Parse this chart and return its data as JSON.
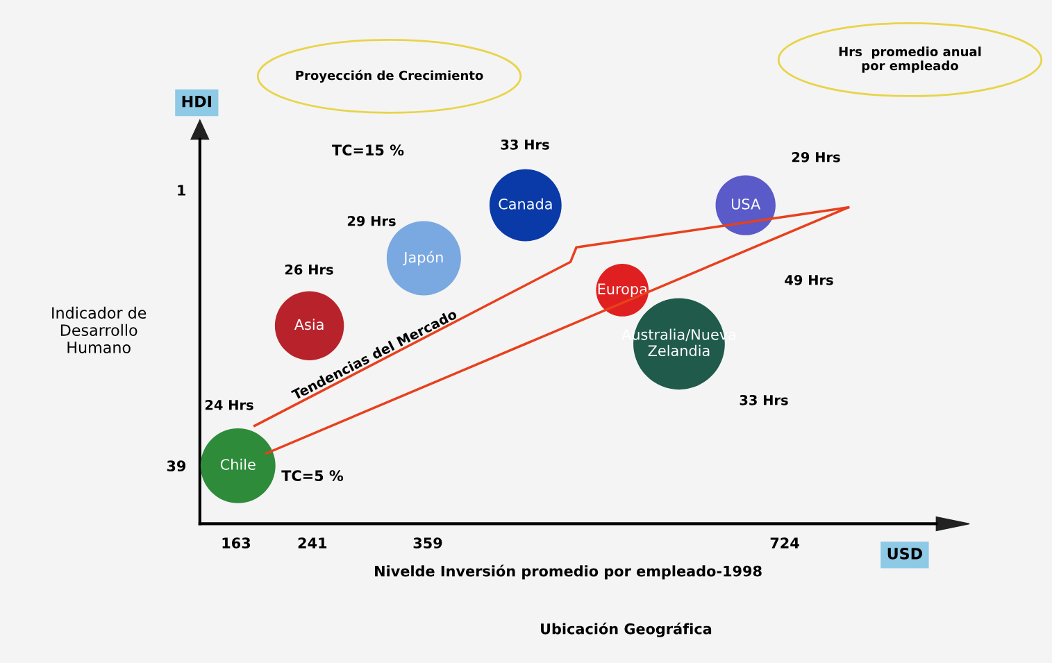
{
  "chart_data": {
    "type": "bubble",
    "xlabel": "Nivelde Inversión promedio por empleado-1998",
    "ylabel": "Indicador de\nDesarrollo\nHumano",
    "xlim": [
      126,
      879
    ],
    "xticks": [
      163,
      241,
      359,
      724
    ],
    "ylim": [
      47,
      -6
    ],
    "yticks": [
      39,
      1
    ],
    "grid": false,
    "legend": false,
    "series": [
      {
        "name": "Chile",
        "color": "#2e8b3a",
        "x": [
          165
        ],
        "values": [
          39
        ],
        "sizes": [
          0.67
        ]
      },
      {
        "name": "Asia",
        "color": "#b8232b",
        "x": [
          238
        ],
        "values": [
          19.7
        ],
        "sizes": [
          0.57
        ]
      },
      {
        "name": "Japón",
        "color": "#7aa8e0",
        "x": [
          355
        ],
        "values": [
          10.4
        ],
        "sizes": [
          0.66
        ]
      },
      {
        "name": "Canada",
        "color": "#0a3aa8",
        "x": [
          459
        ],
        "values": [
          3.1
        ],
        "sizes": [
          0.62
        ]
      },
      {
        "name": "USA",
        "color": "#5a5ac8",
        "x": [
          684
        ],
        "values": [
          3.1
        ],
        "sizes": [
          0.43
        ]
      },
      {
        "name": "Europa",
        "color": "#e02020",
        "x": [
          558
        ],
        "values": [
          14.8
        ],
        "sizes": [
          0.33
        ]
      },
      {
        "name": "Australia/Nueva\nZelandia",
        "color": "#1f5a4a",
        "x": [
          616
        ],
        "values": [
          22.2
        ],
        "sizes": [
          1
        ]
      },
      {
        "type": "line",
        "color": "#e8401c",
        "x": [
          182,
          505,
          511,
          789
        ],
        "values": [
          33.5,
          10.9,
          8.9,
          3.4
        ]
      },
      {
        "type": "line",
        "color": "#e8401c",
        "x": [
          194,
          789
        ],
        "values": [
          37.3,
          3.4
        ]
      }
    ],
    "annotations": [
      "24 Hrs",
      "26 Hrs",
      "29 Hrs",
      "33 Hrs",
      "29 Hrs",
      "49 Hrs",
      "33 Hrs",
      "TC=15 %",
      "TC=5 %",
      "Tendencias del Mercado",
      "Proyección de Crecimiento",
      "Hrs  promedio anual\npor empleado",
      "HDI",
      "USD",
      "Ubicación Geográfica"
    ]
  }
}
